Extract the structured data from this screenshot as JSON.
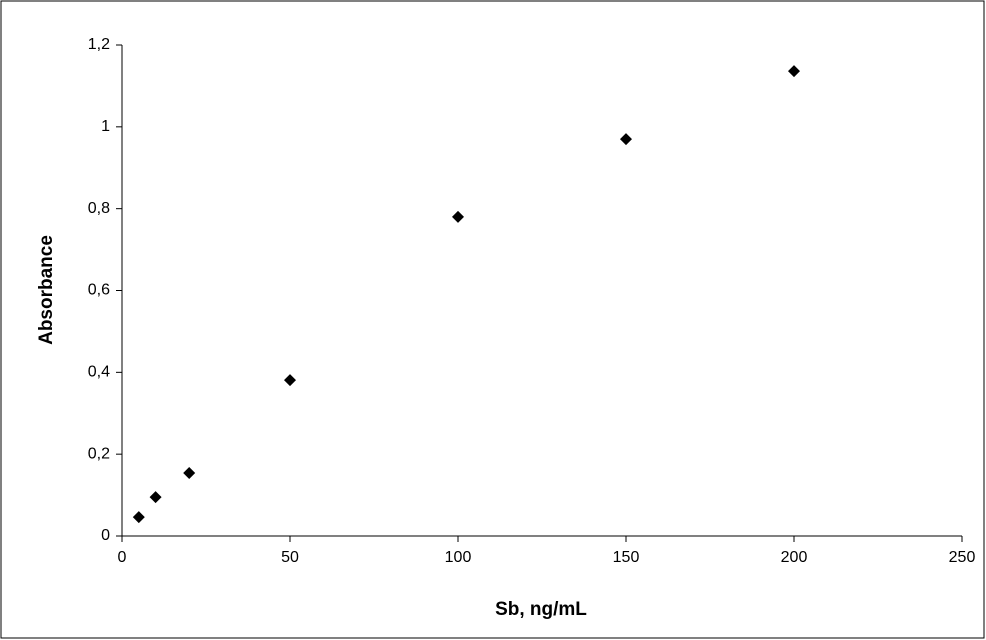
{
  "chart_data": {
    "type": "scatter",
    "x_label": "Sb, ng/mL",
    "y_label": "Absorbance",
    "series": [
      {
        "color": "#000000",
        "x": [
          5,
          10,
          20,
          50,
          100,
          150,
          200
        ],
        "values": [
          0.046,
          0.095,
          0.154,
          0.381,
          0.78,
          0.97,
          1.136
        ]
      }
    ],
    "xlim": [
      0,
      250
    ],
    "xticks": [
      0,
      50,
      100,
      150,
      200,
      250
    ],
    "ylim": [
      0,
      1.2
    ],
    "yticks": [
      0,
      {
        "value": 0.2,
        "label": "0,2"
      },
      {
        "value": 0.4,
        "label": "0,4"
      },
      {
        "value": 0.6,
        "label": "0,6"
      },
      {
        "value": 0.8,
        "label": "0,8"
      },
      1,
      {
        "value": 1.2,
        "label": "1,2"
      }
    ],
    "grid": false
  }
}
